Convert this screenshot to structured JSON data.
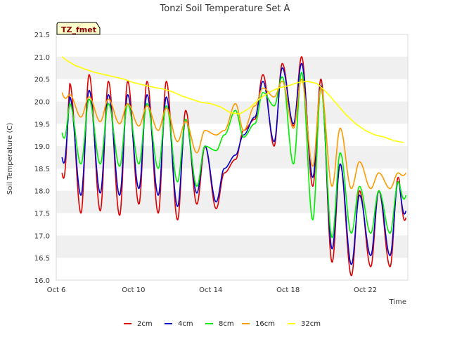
{
  "chart_data": {
    "type": "line",
    "title": "Tonzi Soil Temperature Set A",
    "xlabel": "Time",
    "ylabel": "Soil Temperature (C)",
    "badge": "TZ_fmet",
    "ylim": [
      16.0,
      21.5
    ],
    "yticks": [
      16.0,
      16.5,
      17.0,
      17.5,
      18.0,
      18.5,
      19.0,
      19.5,
      20.0,
      20.5,
      21.0,
      21.5
    ],
    "ytick_labels": [
      "16.0",
      "16.5",
      "17.0",
      "17.5",
      "18.0",
      "18.5",
      "19.0",
      "19.5",
      "20.0",
      "20.5",
      "21.0",
      "21.5"
    ],
    "xlim_days": [
      6.0,
      24.2
    ],
    "xticks": [
      {
        "day": 6,
        "label": "Oct 6"
      },
      {
        "day": 10,
        "label": "Oct 10"
      },
      {
        "day": 14,
        "label": "Oct 14"
      },
      {
        "day": 18,
        "label": "Oct 18"
      },
      {
        "day": 22,
        "label": "Oct 22"
      }
    ],
    "grid": "horizontal bands",
    "legend_position": "bottom-center",
    "series": [
      {
        "name": "2cm",
        "color": "#dd0000",
        "lows": [
          17.4,
          17.5,
          17.55,
          17.45,
          17.7,
          17.5,
          17.35,
          17.7,
          17.6,
          18.7,
          19.6,
          19.0,
          19.45,
          18.1,
          16.4,
          16.1,
          16.3
        ],
        "highs": [
          20.4,
          20.6,
          20.45,
          20.45,
          20.45,
          20.45,
          19.8,
          19.0,
          18.4,
          19.35,
          20.6,
          20.85,
          21.0,
          20.5,
          18.6,
          18.0,
          18.0,
          18.3
        ],
        "start": 18.4,
        "end": 17.4
      },
      {
        "name": "4cm",
        "color": "#0000cc",
        "lows": [
          17.8,
          17.9,
          17.95,
          17.9,
          18.05,
          17.9,
          17.65,
          17.95,
          17.75,
          18.8,
          19.65,
          19.1,
          19.5,
          18.3,
          16.7,
          16.35,
          16.55
        ],
        "highs": [
          20.1,
          20.25,
          20.15,
          20.15,
          20.15,
          20.1,
          19.6,
          19.0,
          18.5,
          19.25,
          20.45,
          20.75,
          20.85,
          20.35,
          18.6,
          17.9,
          18.0,
          18.2
        ],
        "start": 18.75,
        "end": 17.55
      },
      {
        "name": "8cm",
        "color": "#00ee00",
        "lows": [
          18.55,
          18.6,
          18.6,
          18.55,
          18.6,
          18.5,
          18.2,
          18.1,
          18.9,
          19.8,
          19.5,
          19.9,
          18.6,
          17.35,
          16.95,
          17.05
        ],
        "highs": [
          19.95,
          20.05,
          19.95,
          19.95,
          19.95,
          19.9,
          19.6,
          19.0,
          19.25,
          19.2,
          20.2,
          20.55,
          20.65,
          20.3,
          18.85,
          18.1,
          18.0,
          18.2
        ],
        "start": 19.3,
        "end": 17.9
      },
      {
        "name": "16cm",
        "color": "#ff9900",
        "lows": [
          19.7,
          19.65,
          19.55,
          19.5,
          19.45,
          19.35,
          19.1,
          18.85,
          19.25,
          19.95,
          19.9,
          20.1,
          19.4,
          18.55,
          18.1,
          18.05
        ],
        "highs": [
          20.15,
          20.1,
          20.05,
          19.95,
          19.9,
          19.85,
          19.55,
          19.35,
          19.35,
          19.35,
          20.3,
          20.45,
          20.5,
          20.3,
          19.4,
          18.65,
          18.4,
          18.4
        ],
        "start": 20.2,
        "end": 18.4
      },
      {
        "name": "32cm",
        "color": "#ffff00",
        "x": [
          6.3,
          6.6,
          7.0,
          7.5,
          8.0,
          8.5,
          9.0,
          9.5,
          10.0,
          10.5,
          11.0,
          11.5,
          12.0,
          12.5,
          13.0,
          13.5,
          14.0,
          14.5,
          15.0,
          15.5,
          16.0,
          16.5,
          17.0,
          17.5,
          18.0,
          18.5,
          19.0,
          19.5,
          20.0,
          20.5,
          21.0,
          21.5,
          22.0,
          22.5,
          23.0,
          23.5,
          24.0
        ],
        "values": [
          21.0,
          20.9,
          20.8,
          20.72,
          20.65,
          20.6,
          20.55,
          20.5,
          20.42,
          20.37,
          20.32,
          20.28,
          20.22,
          20.12,
          20.05,
          19.98,
          19.95,
          19.88,
          19.75,
          19.72,
          19.85,
          20.05,
          20.2,
          20.3,
          20.35,
          20.42,
          20.45,
          20.4,
          20.2,
          19.95,
          19.7,
          19.5,
          19.35,
          19.25,
          19.2,
          19.12,
          19.08
        ]
      }
    ]
  }
}
